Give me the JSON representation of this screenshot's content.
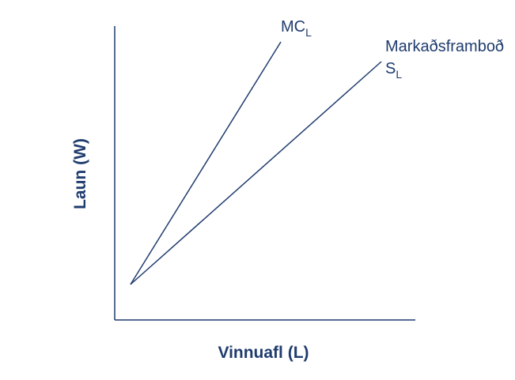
{
  "axes": {
    "y_label": "Laun (W)",
    "x_label": "Vinnuafl (L)"
  },
  "curves": [
    {
      "symbol": "MC",
      "subscript": "L"
    },
    {
      "name": "Markaðsframboð",
      "symbol": "S",
      "subscript": "L"
    }
  ]
}
